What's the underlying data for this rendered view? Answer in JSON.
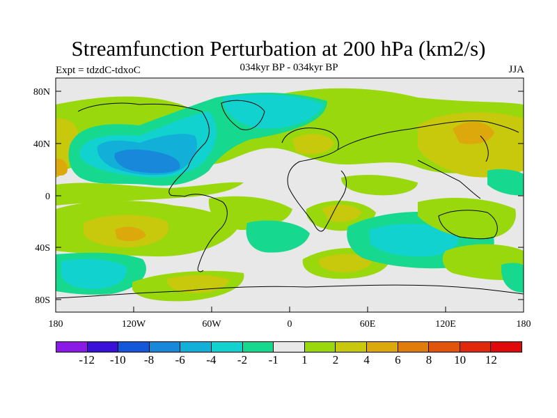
{
  "title": "Streamfunction Perturbation at 200 hPa (km2/s)",
  "experiment": "Expt = tdzdC-tdxoC",
  "period": "034kyr BP - 034kyr BP",
  "season": "JJA",
  "lat_ticks": [
    "80N",
    "40N",
    "0",
    "40S",
    "80S"
  ],
  "lon_ticks": [
    "180",
    "120W",
    "60W",
    "0",
    "60E",
    "120E",
    "180"
  ],
  "colorbar": {
    "labels": [
      "-12",
      "-10",
      "-8",
      "-6",
      "-4",
      "-2",
      "-1",
      "1",
      "2",
      "4",
      "6",
      "8",
      "10",
      "12"
    ],
    "colors": [
      "#8b1ae6",
      "#3810d8",
      "#1457d8",
      "#1888da",
      "#12b0d8",
      "#12d2d0",
      "#16d88e",
      "#e8e8e8",
      "#9ad80e",
      "#c8c80c",
      "#dca80c",
      "#e07c0c",
      "#e0540c",
      "#e0280c",
      "#e00a0a"
    ]
  },
  "map_colors": {
    "land_line": "#000000",
    "ocean_gray": "#e8e8e8"
  }
}
